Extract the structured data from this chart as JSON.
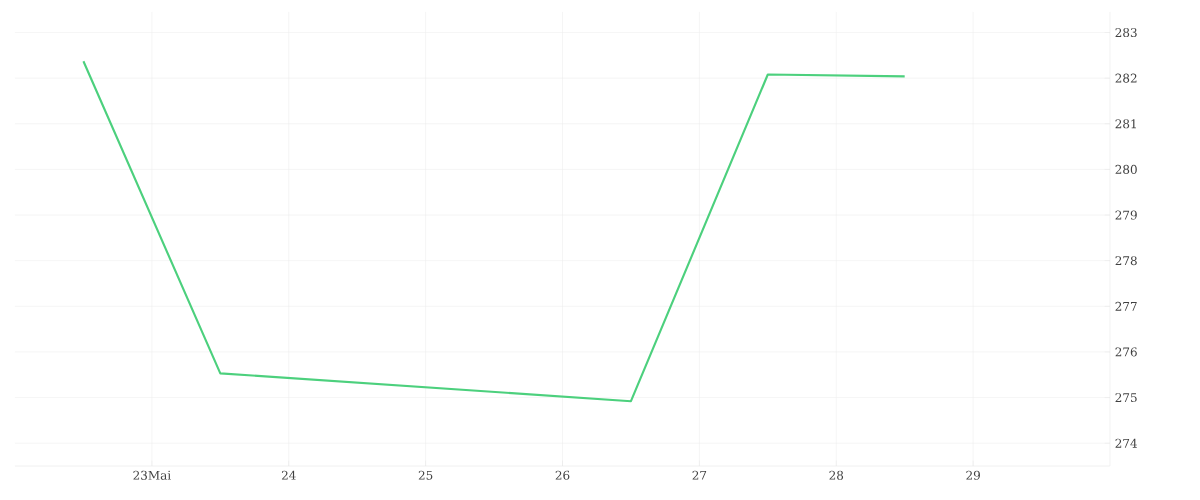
{
  "chart_data": {
    "type": "line",
    "x": [
      22.5,
      23.5,
      26.5,
      27.5,
      28.5
    ],
    "series": [
      {
        "color": "#4cd07d",
        "values": [
          282.37,
          275.53,
          274.92,
          282.08,
          282.04
        ]
      }
    ],
    "xlim": [
      22,
      30
    ],
    "xticks": [
      {
        "value": 23,
        "label": "23Mai"
      },
      24,
      25,
      26,
      27,
      28,
      29
    ],
    "ylim": [
      273.5,
      283.45
    ],
    "yticks": [
      274,
      275,
      276,
      277,
      278,
      279,
      280,
      281,
      282,
      283
    ],
    "grid": true,
    "marker": "none"
  }
}
